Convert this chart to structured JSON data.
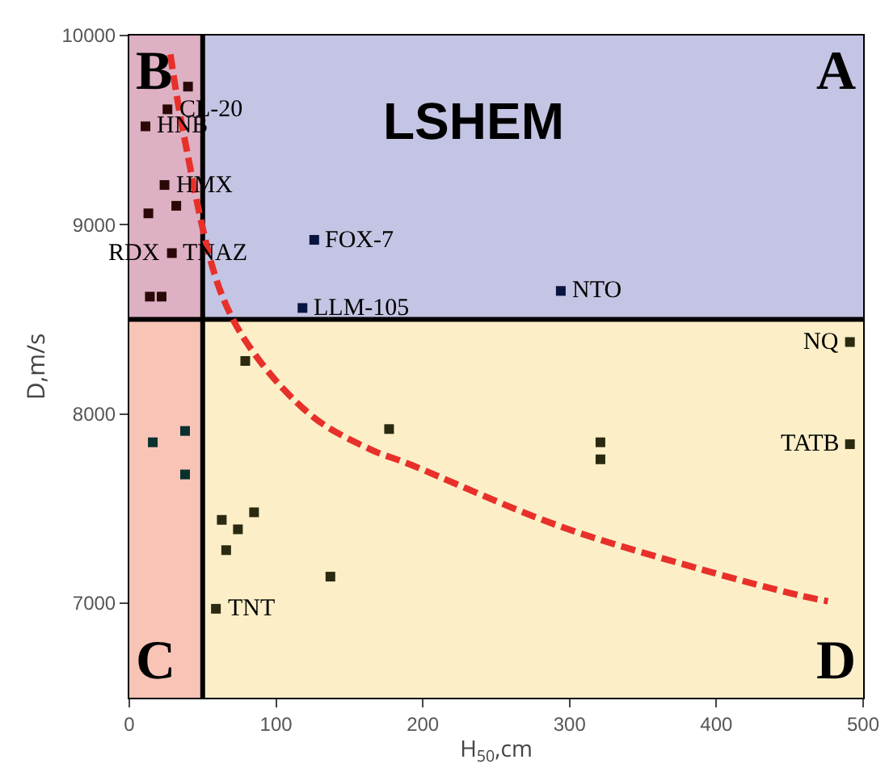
{
  "chart_data": {
    "type": "scatter",
    "xlabel": "H$_{50}$,cm",
    "ylabel": "D,m/s",
    "xlim": [
      0,
      500
    ],
    "xticks": [
      0,
      100,
      200,
      300,
      400,
      500
    ],
    "ylim": [
      6500,
      10000
    ],
    "yticks": [
      7000,
      8000,
      9000,
      10000
    ],
    "grid": false,
    "series": [
      {
        "marker": "square",
        "x": [
          40,
          26,
          11,
          24,
          32,
          13,
          29,
          14,
          22,
          126,
          118,
          294,
          491,
          491,
          321,
          321,
          177,
          79,
          16,
          38,
          38,
          63,
          74,
          85,
          66,
          137,
          59
        ],
        "values": [
          9730,
          9610,
          9520,
          9210,
          9100,
          9060,
          8850,
          8620,
          8620,
          8920,
          8560,
          8650,
          8380,
          7840,
          7850,
          7760,
          7920,
          8280,
          7850,
          7910,
          7680,
          7440,
          7390,
          7480,
          7280,
          7140,
          6970
        ],
        "colors": [
          "#2a0808",
          "#2a0808",
          "#2a0808",
          "#2a0808",
          "#2a0808",
          "#2a0808",
          "#2a0808",
          "#2a0808",
          "#2a0808",
          "#0a1440",
          "#0a1440",
          "#0a1440",
          "#2a2a10",
          "#2a2a10",
          "#2a2a10",
          "#2a2a10",
          "#2a2a10",
          "#2a2a10",
          "#0a3030",
          "#0a3030",
          "#0a3030",
          "#2a2a10",
          "#2a2a10",
          "#2a2a10",
          "#2a2a10",
          "#2a2a10",
          "#2a2a10"
        ]
      },
      {
        "type": "line",
        "marker": "none",
        "color": "#e8302a",
        "line_style": "dashed",
        "x": [
          28,
          37,
          62,
          86,
          126,
          165,
          189,
          292,
          389,
          457,
          476
        ],
        "values": [
          9900,
          9480,
          8650,
          8310,
          7980,
          7810,
          7740,
          7410,
          7180,
          7040,
          7010
        ]
      }
    ],
    "bands": [
      {
        "axis": "y",
        "from": 8500,
        "to": 10000,
        "color": "#c4c4e4"
      },
      {
        "axis": "y",
        "from": 6500,
        "to": 8500,
        "color": "#fcefc8"
      },
      {
        "axis": "x",
        "from": 0,
        "to": 50,
        "color": "#f4a0a8"
      }
    ],
    "ref_lines": [
      {
        "axis": "x",
        "value": 50,
        "color": "#000000"
      },
      {
        "axis": "y",
        "value": 8500,
        "color": "#000000"
      }
    ],
    "annotations": [
      {
        "text": "CL-20",
        "x": 26,
        "y": 9610
      },
      {
        "text": "HNB",
        "x": 11,
        "y": 9520
      },
      {
        "text": "HMX",
        "x": 24,
        "y": 9210
      },
      {
        "text": "TNAZ",
        "x": 29,
        "y": 8850
      },
      {
        "text": "RDX",
        "x": 29,
        "y": 8850
      },
      {
        "text": "FOX-7",
        "x": 126,
        "y": 8920
      },
      {
        "text": "LLM-105",
        "x": 118,
        "y": 8560
      },
      {
        "text": "NTO",
        "x": 294,
        "y": 8650
      },
      {
        "text": "NQ",
        "x": 491,
        "y": 8380
      },
      {
        "text": "TATB",
        "x": 491,
        "y": 7840
      },
      {
        "text": "TNT",
        "x": 59,
        "y": 6970
      },
      "LSHEM",
      "A",
      "B",
      "C",
      "D"
    ]
  }
}
